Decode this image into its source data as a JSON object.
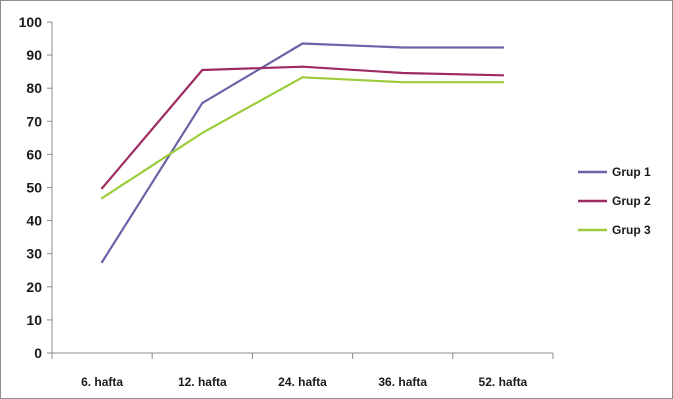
{
  "chart_data": {
    "type": "line",
    "categories": [
      "6. hafta",
      "12. hafta",
      "24. hafta",
      "36. hafta",
      "52. hafta"
    ],
    "series": [
      {
        "name": "Grup 1",
        "color": "#6a63a8",
        "values": [
          27.5,
          75.5,
          93.5,
          92.3,
          92.3
        ]
      },
      {
        "name": "Grup 2",
        "color": "#9e2c62",
        "values": [
          49.8,
          85.5,
          86.5,
          84.6,
          83.9
        ]
      },
      {
        "name": "Grup 3",
        "color": "#9ccc3c",
        "values": [
          46.8,
          66.5,
          83.3,
          81.8,
          81.8
        ]
      }
    ],
    "yticks": [
      0,
      10,
      20,
      30,
      40,
      50,
      60,
      70,
      80,
      90,
      100
    ],
    "ylim": [
      0,
      100
    ],
    "title": "",
    "xlabel": "",
    "ylabel": "",
    "grid": false,
    "legend_position": "right"
  }
}
